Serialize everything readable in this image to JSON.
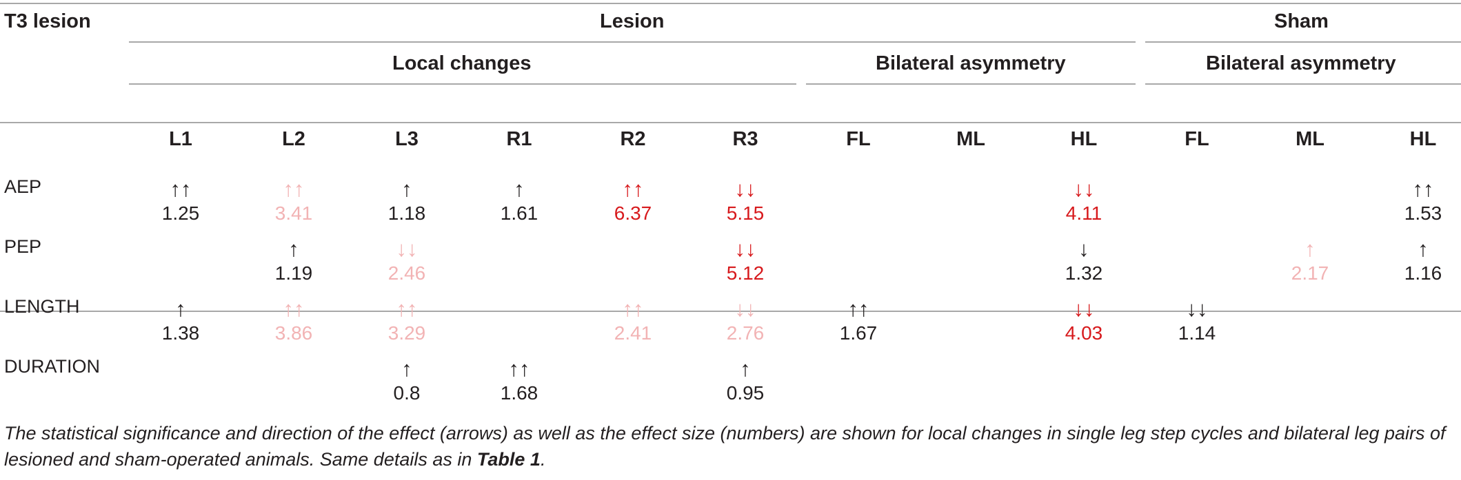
{
  "table": {
    "corner_label": "T3 lesion",
    "group_lesion": "Lesion",
    "group_sham": "Sham",
    "sub_local": "Local changes",
    "sub_bilateral_lesion": "Bilateral asymmetry",
    "sub_bilateral_sham": "Bilateral asymmetry",
    "columns": [
      "L1",
      "L2",
      "L3",
      "R1",
      "R2",
      "R3",
      "FL",
      "ML",
      "HL",
      "FL",
      "ML",
      "HL"
    ],
    "rows": [
      {
        "label": "AEP",
        "cells": [
          {
            "arrow": "↑↑",
            "value": "1.25",
            "sig": "black"
          },
          {
            "arrow": "↑↑",
            "value": "3.41",
            "sig": "pink"
          },
          {
            "arrow": "↑",
            "value": "1.18",
            "sig": "black"
          },
          {
            "arrow": "↑",
            "value": "1.61",
            "sig": "black"
          },
          {
            "arrow": "↑↑",
            "value": "6.37",
            "sig": "red"
          },
          {
            "arrow": "↓↓",
            "value": "5.15",
            "sig": "red"
          },
          null,
          null,
          {
            "arrow": "↓↓",
            "value": "4.11",
            "sig": "red"
          },
          null,
          null,
          {
            "arrow": "↑↑",
            "value": "1.53",
            "sig": "black"
          }
        ]
      },
      {
        "label": "PEP",
        "cells": [
          null,
          {
            "arrow": "↑",
            "value": "1.19",
            "sig": "black"
          },
          {
            "arrow": "↓↓",
            "value": "2.46",
            "sig": "pink"
          },
          null,
          null,
          {
            "arrow": "↓↓",
            "value": "5.12",
            "sig": "red"
          },
          null,
          null,
          {
            "arrow": "↓",
            "value": "1.32",
            "sig": "black"
          },
          null,
          {
            "arrow": "↑",
            "value": "2.17",
            "sig": "pink"
          },
          {
            "arrow": "↑",
            "value": "1.16",
            "sig": "black"
          }
        ]
      },
      {
        "label": "LENGTH",
        "cells": [
          {
            "arrow": "↑",
            "value": "1.38",
            "sig": "black"
          },
          {
            "arrow": "↑↑",
            "value": "3.86",
            "sig": "pink"
          },
          {
            "arrow": "↑↑",
            "value": "3.29",
            "sig": "pink"
          },
          null,
          {
            "arrow": "↑↑",
            "value": "2.41",
            "sig": "pink"
          },
          {
            "arrow": "↓↓",
            "value": "2.76",
            "sig": "pink"
          },
          {
            "arrow": "↑↑",
            "value": "1.67",
            "sig": "black"
          },
          null,
          {
            "arrow": "↓↓",
            "value": "4.03",
            "sig": "red"
          },
          {
            "arrow": "↓↓",
            "value": "1.14",
            "sig": "black"
          },
          null,
          null
        ]
      },
      {
        "label": "DURATION",
        "cells": [
          null,
          null,
          {
            "arrow": "↑",
            "value": "0.8",
            "sig": "black"
          },
          {
            "arrow": "↑↑",
            "value": "1.68",
            "sig": "black"
          },
          null,
          {
            "arrow": "↑",
            "value": "0.95",
            "sig": "black"
          },
          null,
          null,
          null,
          null,
          null,
          null
        ]
      }
    ]
  },
  "caption": {
    "text": "The statistical significance and direction of the effect (arrows) as well as the effect size (numbers) are shown for local changes in single leg step cycles and bilateral leg pairs of lesioned and sham-operated animals. Same details as in ",
    "ref": "Table 1",
    "end": "."
  },
  "colors": {
    "text": "#231f20",
    "red": "#d7191c",
    "pink": "#f2b3b4",
    "rule": "#a8a8a8"
  }
}
